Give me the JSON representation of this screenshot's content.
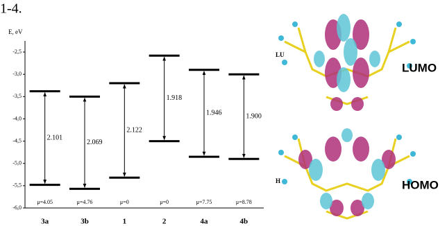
{
  "chart_data": {
    "type": "energy-levels",
    "heading": "1-4.",
    "ylabel": "E, eV",
    "categories": [
      "3a",
      "3b",
      "1",
      "2",
      "4a",
      "4b"
    ],
    "lumo": [
      -3.38,
      -3.5,
      -3.2,
      -2.58,
      -2.9,
      -3.0
    ],
    "homo": [
      -5.48,
      -5.57,
      -5.32,
      -4.5,
      -4.85,
      -4.9
    ],
    "gaps": {
      "values": [
        2.101,
        2.069,
        2.122,
        1.918,
        1.946,
        1.9
      ],
      "value_labels": [
        "2.101",
        "2.069",
        "2.122",
        "1.918",
        "1.946",
        "1.900"
      ]
    },
    "dipole_labels": [
      "μ=4.05",
      "μ=4.76",
      "μ=0",
      "μ=0",
      "μ=7.75",
      "μ=8.78"
    ],
    "ylim": [
      -6.0,
      -2.25
    ],
    "yticks": [
      {
        "value": -2.5,
        "label": "-2,5"
      },
      {
        "value": -3.0,
        "label": "-3,0"
      },
      {
        "value": -3.5,
        "label": "-3,5"
      },
      {
        "value": -4.0,
        "label": "-4,0"
      },
      {
        "value": -4.5,
        "label": "-4,5"
      },
      {
        "value": -5.0,
        "label": "-5,0"
      },
      {
        "value": -5.5,
        "label": "-5,5"
      },
      {
        "value": -6.0,
        "label": "-6,0"
      }
    ],
    "color": "#000000"
  },
  "figure": {
    "lumo_label": "LUMO",
    "homo_label": "HOMO",
    "lumo_tag": "LU",
    "homo_tag": "H"
  }
}
